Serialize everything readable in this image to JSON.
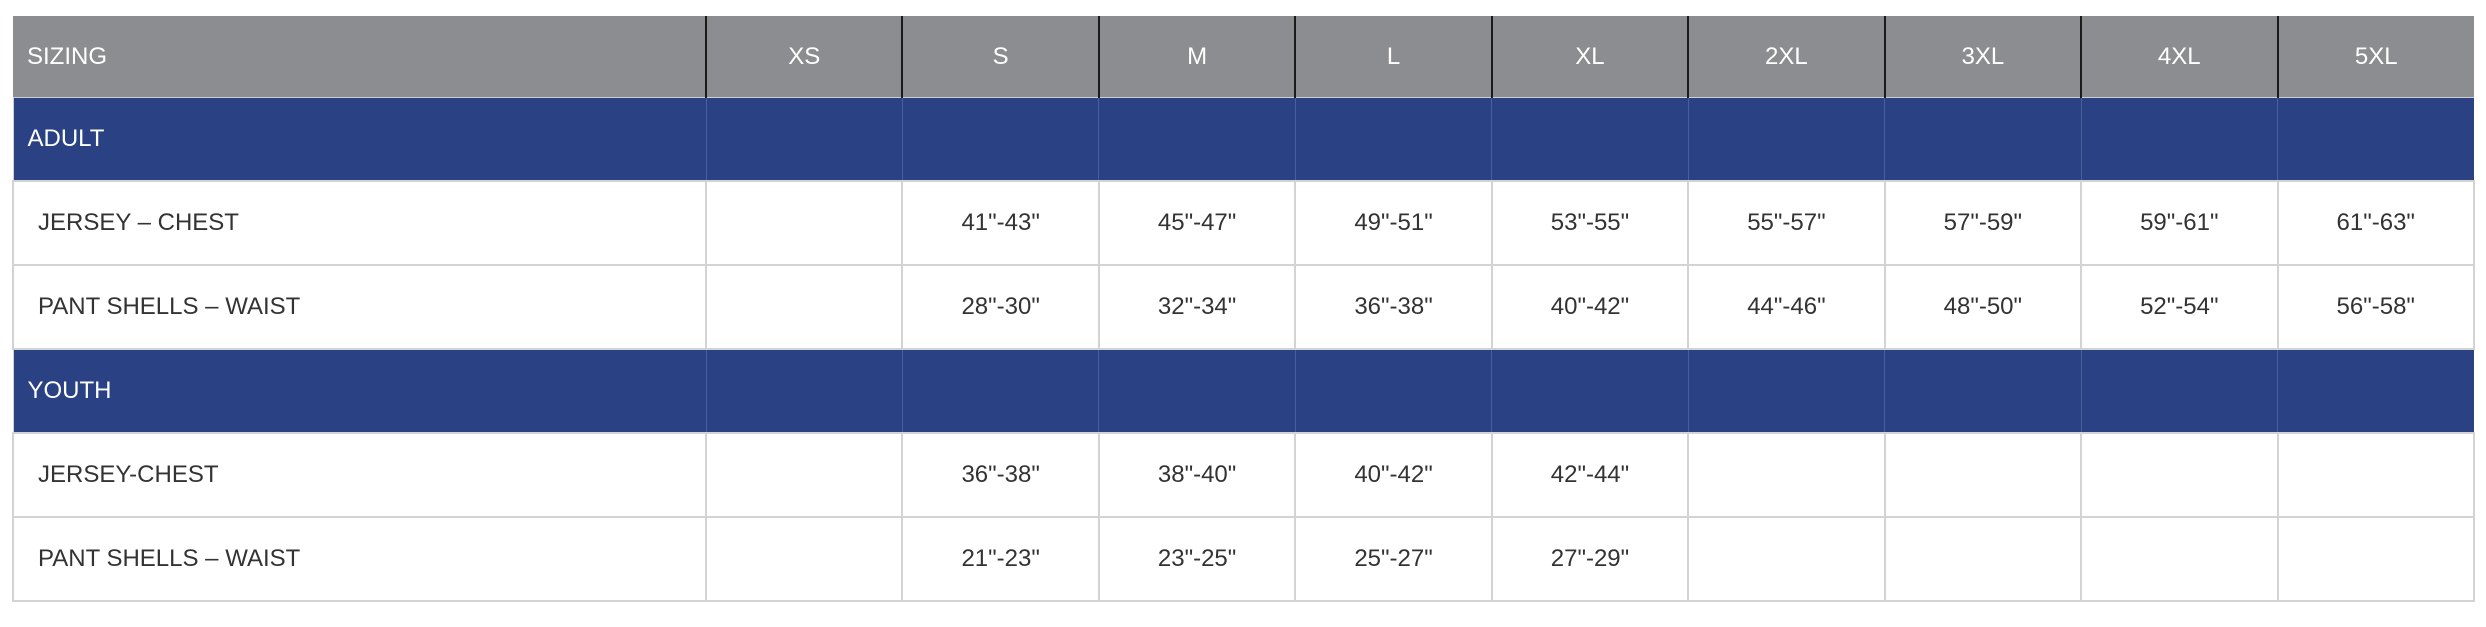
{
  "header": [
    "SIZING",
    "XS",
    "S",
    "M",
    "L",
    "XL",
    "2XL",
    "3XL",
    "4XL",
    "5XL"
  ],
  "sections": [
    {
      "label": "ADULT",
      "rows": [
        {
          "label": "JERSEY – CHEST",
          "values": [
            "",
            "41\"-43\"",
            "45\"-47\"",
            "49\"-51\"",
            "53\"-55\"",
            "55\"-57\"",
            "57\"-59\"",
            "59\"-61\"",
            "61\"-63\""
          ]
        },
        {
          "label": "PANT SHELLS – WAIST",
          "values": [
            "",
            "28\"-30\"",
            "32\"-34\"",
            "36\"-38\"",
            "40\"-42\"",
            "44\"-46\"",
            "48\"-50\"",
            "52\"-54\"",
            "56\"-58\""
          ]
        }
      ]
    },
    {
      "label": "YOUTH",
      "rows": [
        {
          "label": "JERSEY-CHEST",
          "values": [
            "",
            "36\"-38\"",
            "38\"-40\"",
            "40\"-42\"",
            "42\"-44\"",
            "",
            "",
            "",
            ""
          ]
        },
        {
          "label": "PANT SHELLS – WAIST",
          "values": [
            "",
            "21\"-23\"",
            "23\"-25\"",
            "25\"-27\"",
            "27\"-29\"",
            "",
            "",
            "",
            ""
          ]
        }
      ]
    }
  ],
  "colors": {
    "header_bg": "#8c8d90",
    "section_bg": "#2a4283",
    "text": "#333333",
    "grid": "#d3d3d3"
  }
}
